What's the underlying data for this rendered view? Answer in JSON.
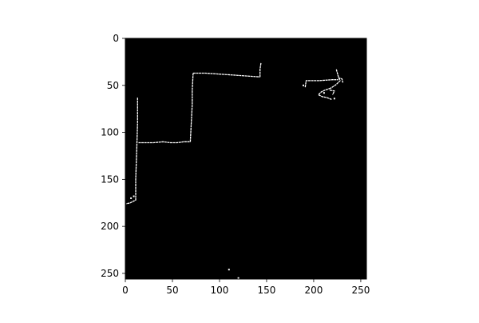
{
  "chart_data": {
    "type": "heatmap",
    "title": "",
    "xlabel": "",
    "ylabel": "",
    "xlim": [
      0,
      256
    ],
    "ylim": [
      256,
      0
    ],
    "y_inverted": true,
    "grid": false,
    "legend": "none",
    "colormap": "gray",
    "background_value": 0,
    "foreground_value": 1,
    "x_ticks": [
      0,
      50,
      100,
      150,
      200,
      250
    ],
    "y_ticks": [
      0,
      50,
      100,
      150,
      200,
      250
    ],
    "x_tick_labels": [
      "0",
      "50",
      "100",
      "150",
      "200",
      "250"
    ],
    "y_tick_labels": [
      "0",
      "50",
      "100",
      "150",
      "200",
      "250"
    ],
    "series": [
      {
        "values_note": "",
        "paths": [
          [
            [
              13,
              63
            ],
            [
              13,
              90
            ],
            [
              12,
              120
            ],
            [
              11,
              150
            ],
            [
              11,
              172
            ],
            [
              5,
              175
            ],
            [
              1,
              176
            ]
          ],
          [
            [
              14,
              111
            ],
            [
              18,
              111
            ],
            [
              30,
              111
            ],
            [
              40,
              110
            ],
            [
              48,
              111
            ],
            [
              55,
              111
            ],
            [
              62,
              110
            ],
            [
              69,
              110
            ]
          ],
          [
            [
              69,
              110
            ],
            [
              70,
              90
            ],
            [
              71,
              70
            ],
            [
              71,
              55
            ],
            [
              72,
              37
            ]
          ],
          [
            [
              72,
              37
            ],
            [
              85,
              37
            ],
            [
              100,
              38
            ],
            [
              115,
              39
            ],
            [
              128,
              40
            ],
            [
              143,
              41
            ]
          ],
          [
            [
              143,
              41
            ],
            [
              143,
              33
            ],
            [
              144,
              26
            ]
          ],
          [
            [
              191,
              52
            ],
            [
              192,
              45
            ],
            [
              205,
              45
            ],
            [
              220,
              44
            ],
            [
              226,
              44
            ]
          ],
          [
            [
              224,
              33
            ],
            [
              226,
              40
            ],
            [
              228,
              45
            ],
            [
              224,
              49
            ],
            [
              218,
              53
            ]
          ],
          [
            [
              218,
              53
            ],
            [
              212,
              55
            ],
            [
              208,
              57
            ],
            [
              205,
              60
            ],
            [
              209,
              62
            ],
            [
              214,
              63
            ],
            [
              219,
              65
            ]
          ],
          [
            [
              217,
              55
            ],
            [
              222,
              56
            ],
            [
              220,
              60
            ]
          ],
          [
            [
              226,
              42
            ],
            [
              230,
              43
            ],
            [
              231,
              47
            ]
          ]
        ],
        "points": [
          [
            110,
            246
          ],
          [
            120,
            255
          ],
          [
            6,
            170
          ],
          [
            9,
            168
          ],
          [
            222,
            64
          ],
          [
            189,
            50
          ],
          [
            211,
            58
          ]
        ]
      }
    ]
  },
  "colors": {
    "background": "#000000",
    "foreground": "#ffffff",
    "frame": "#000000"
  }
}
